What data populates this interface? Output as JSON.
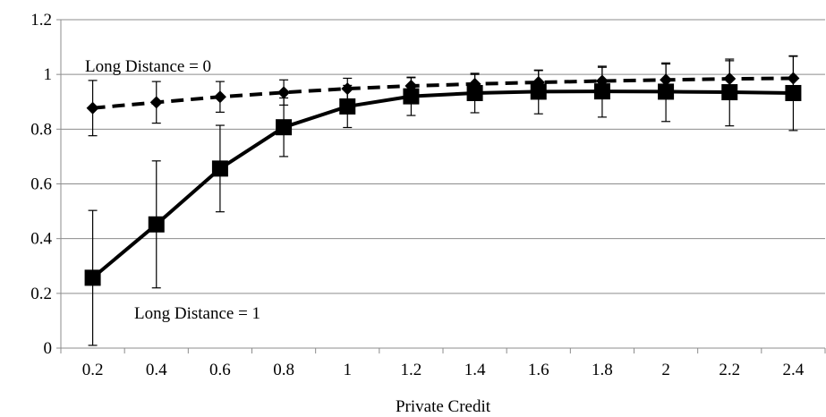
{
  "chart_data": {
    "type": "line",
    "xlabel": "Private Credit",
    "ylabel": "",
    "ylim": [
      0,
      1.2
    ],
    "yticks": [
      "0",
      "0.2",
      "0.4",
      "0.6",
      "0.8",
      "1",
      "1.2"
    ],
    "categories": [
      "0.2",
      "0.4",
      "0.6",
      "0.8",
      "1",
      "1.2",
      "1.4",
      "1.6",
      "1.8",
      "2",
      "2.2",
      "2.4"
    ],
    "grid": "horizontal",
    "legend": "none",
    "series": [
      {
        "name": "Long Distance = 0",
        "style": "dashed",
        "marker": "diamond",
        "color": "#000000",
        "values": [
          0.877,
          0.898,
          0.918,
          0.934,
          0.948,
          0.958,
          0.965,
          0.971,
          0.976,
          0.98,
          0.984,
          0.986
        ],
        "error_low": [
          0.776,
          0.822,
          0.862,
          0.888,
          0.91,
          0.928,
          0.93,
          0.928,
          0.926,
          0.922,
          0.918,
          0.906
        ],
        "error_high": [
          0.978,
          0.974,
          0.974,
          0.98,
          0.986,
          0.988,
          1.0,
          1.014,
          1.026,
          1.038,
          1.05,
          1.066
        ]
      },
      {
        "name": "Long Distance = 1",
        "style": "solid",
        "marker": "square",
        "color": "#000000",
        "values": [
          0.257,
          0.452,
          0.656,
          0.807,
          0.883,
          0.92,
          0.932,
          0.937,
          0.938,
          0.937,
          0.935,
          0.932
        ],
        "error_low": [
          0.01,
          0.22,
          0.498,
          0.7,
          0.806,
          0.85,
          0.86,
          0.856,
          0.844,
          0.828,
          0.812,
          0.795
        ],
        "error_high": [
          0.503,
          0.684,
          0.814,
          0.914,
          0.96,
          0.99,
          1.004,
          1.016,
          1.03,
          1.042,
          1.056,
          1.068
        ]
      }
    ],
    "annotations": [
      {
        "text": "Long Distance = 0",
        "series": 0
      },
      {
        "text": "Long Distance = 1",
        "series": 1
      }
    ]
  }
}
